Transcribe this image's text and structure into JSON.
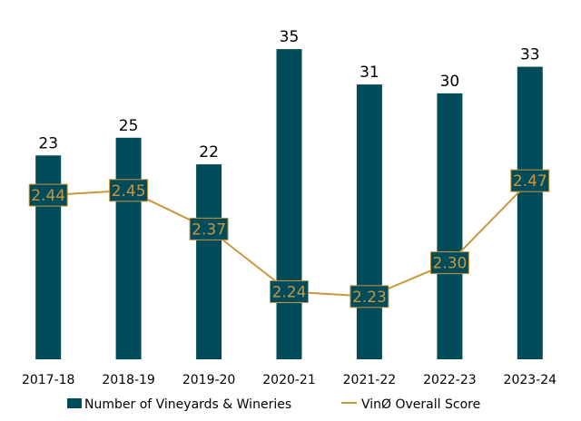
{
  "chart_data": {
    "type": "bar",
    "categories": [
      "2017-18",
      "2018-19",
      "2019-20",
      "2020-21",
      "2021-22",
      "2022-23",
      "2023-24"
    ],
    "series": [
      {
        "name": "Number of Vineyards & Wineries",
        "type": "bar",
        "axis": "left",
        "color": "#004C5A",
        "values": [
          23,
          25,
          22,
          35,
          31,
          30,
          33
        ],
        "labels": [
          "23",
          "25",
          "22",
          "35",
          "31",
          "30",
          "33"
        ]
      },
      {
        "name": "VinØ Overall Score",
        "type": "line",
        "axis": "right",
        "color": "#C9963E",
        "values": [
          2.44,
          2.45,
          2.37,
          2.24,
          2.23,
          2.3,
          2.47
        ],
        "labels": [
          "2.44",
          "2.45",
          "2.37",
          "2.24",
          "2.23",
          "2.30",
          "2.47"
        ]
      }
    ],
    "ylim_left": [
      0,
      40
    ],
    "ylim_right": [
      2.1,
      2.6
    ],
    "grid": false,
    "legend_position": "bottom",
    "label_box_color": "#004C5A"
  }
}
